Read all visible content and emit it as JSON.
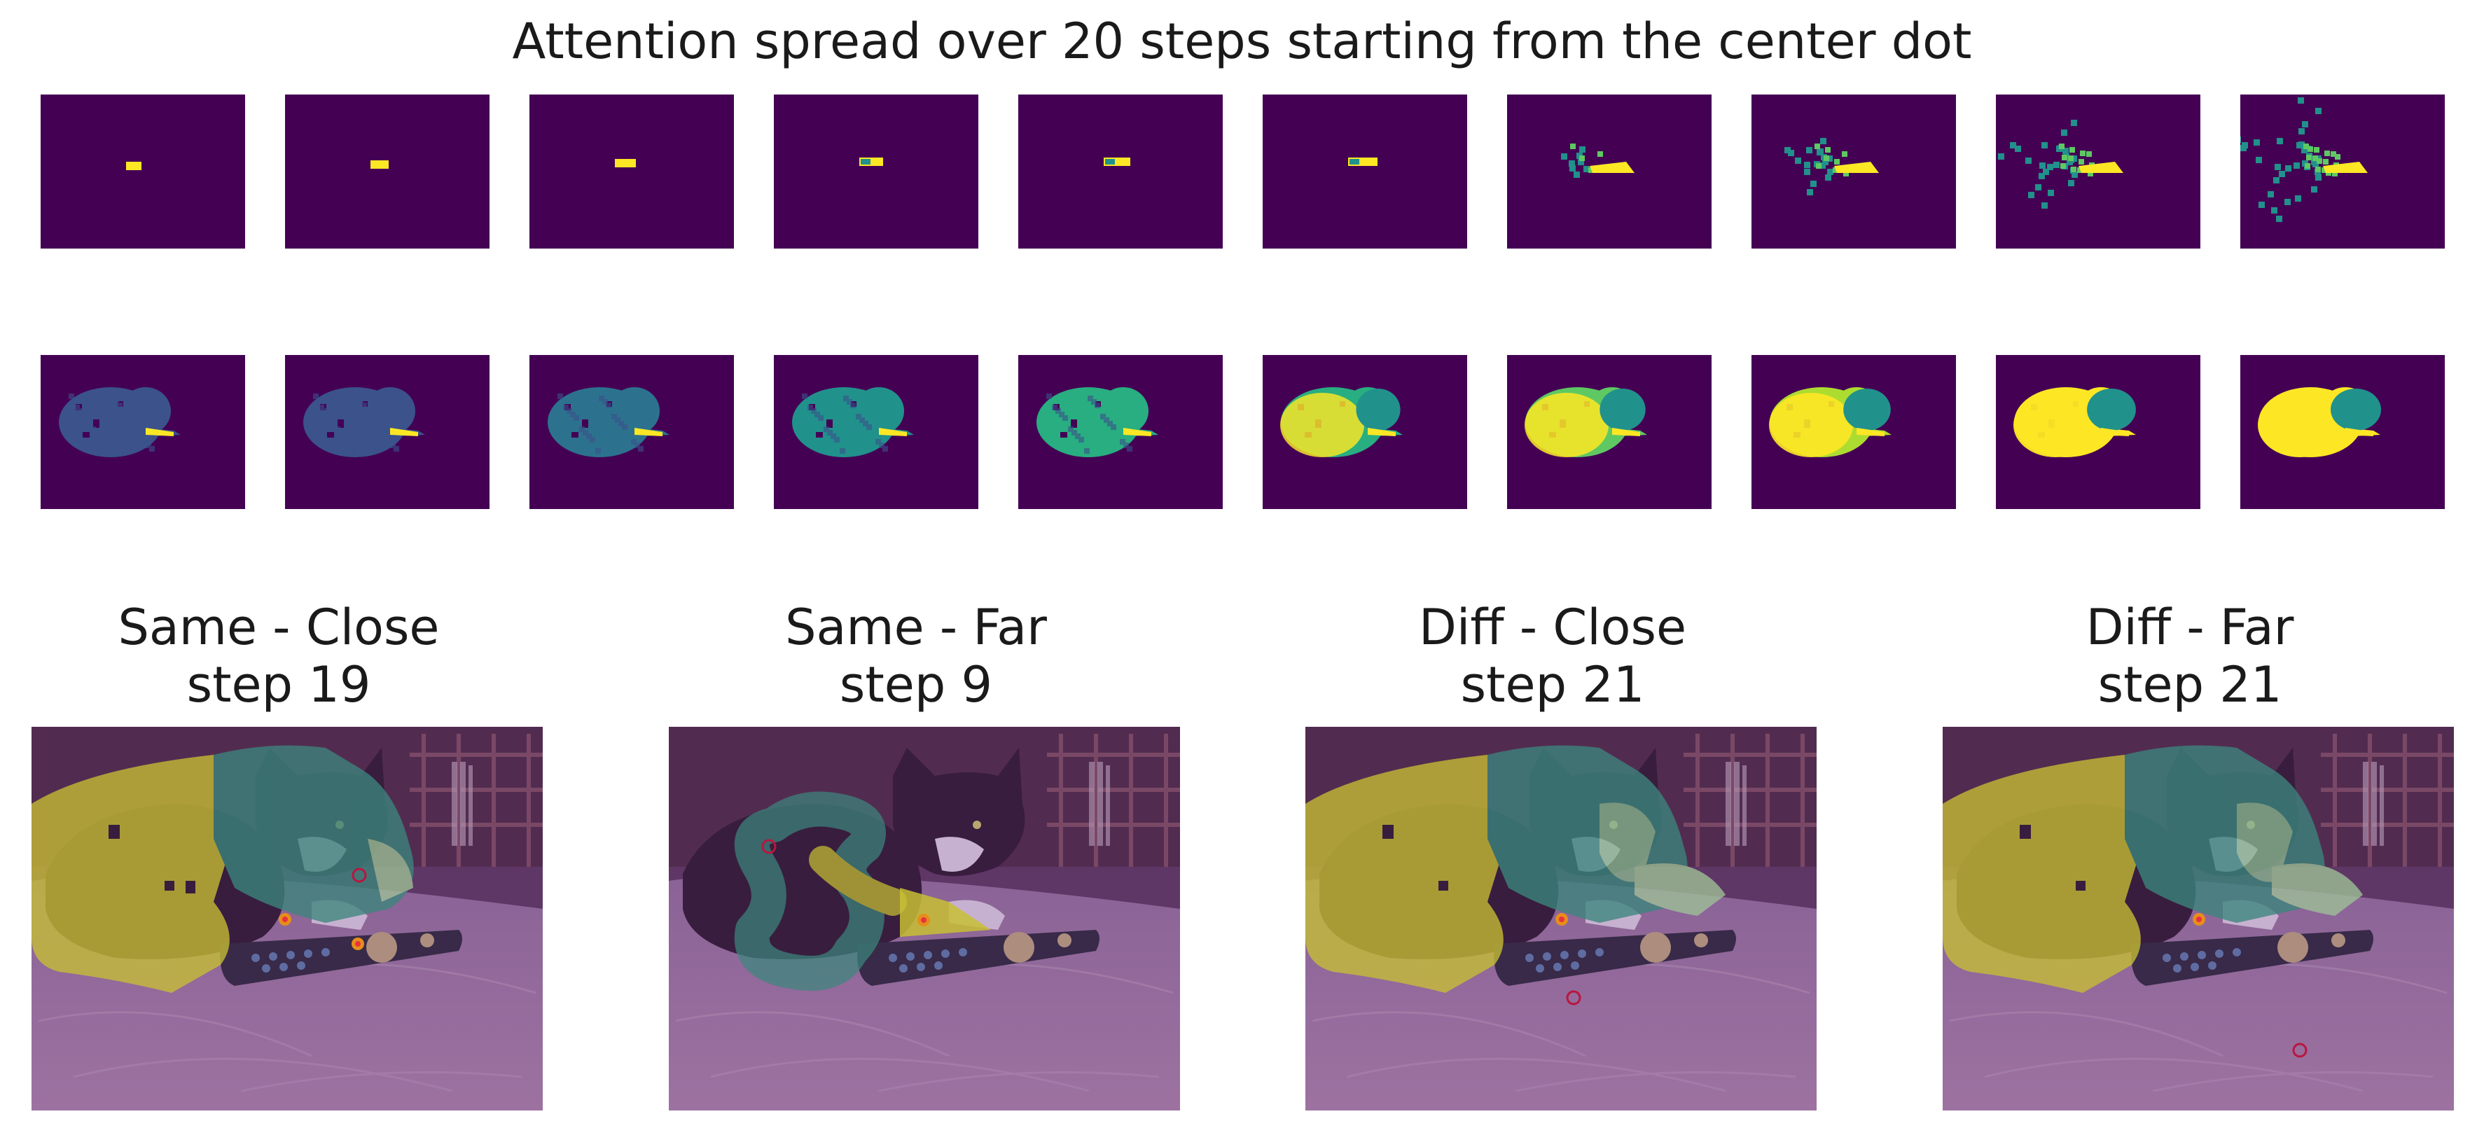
{
  "figure": {
    "title": "Attention spread over 20 steps starting from the center dot"
  },
  "colors": {
    "background_cmap_low": "#440154",
    "seed": "#fde725",
    "overlay_yellow": "#d9e021",
    "overlay_green": "#2f9a7a",
    "overlay_light_green": "#a6e39a",
    "marker_red": "#c8102e",
    "marker_orange": "#ffa400"
  },
  "step_grid": {
    "rows": 2,
    "cols": 10,
    "panels": [
      {
        "row": 1,
        "col": 1,
        "note": ""
      },
      {
        "row": 1,
        "col": 2,
        "note": ""
      },
      {
        "row": 1,
        "col": 3,
        "note": ""
      },
      {
        "row": 1,
        "col": 4,
        "note": ""
      },
      {
        "row": 1,
        "col": 5,
        "note": ""
      },
      {
        "row": 1,
        "col": 6,
        "note": ""
      },
      {
        "row": 1,
        "col": 7,
        "note": ""
      },
      {
        "row": 1,
        "col": 8,
        "note": ""
      },
      {
        "row": 1,
        "col": 9,
        "note": ""
      },
      {
        "row": 1,
        "col": 10,
        "note": ""
      },
      {
        "row": 2,
        "col": 1,
        "note": ""
      },
      {
        "row": 2,
        "col": 2,
        "note": ""
      },
      {
        "row": 2,
        "col": 3,
        "note": ""
      },
      {
        "row": 2,
        "col": 4,
        "note": ""
      },
      {
        "row": 2,
        "col": 5,
        "note": ""
      },
      {
        "row": 2,
        "col": 6,
        "note": ""
      },
      {
        "row": 2,
        "col": 7,
        "note": ""
      },
      {
        "row": 2,
        "col": 8,
        "note": ""
      },
      {
        "row": 2,
        "col": 9,
        "note": ""
      },
      {
        "row": 2,
        "col": 10,
        "note": ""
      }
    ]
  },
  "comparisons": [
    {
      "title_line1": "Same - Close",
      "title_line2": "step 19"
    },
    {
      "title_line1": "Same - Far",
      "title_line2": "step 9"
    },
    {
      "title_line1": "Diff - Close",
      "title_line2": "step 21"
    },
    {
      "title_line1": "Diff - Far",
      "title_line2": "step 21"
    }
  ]
}
